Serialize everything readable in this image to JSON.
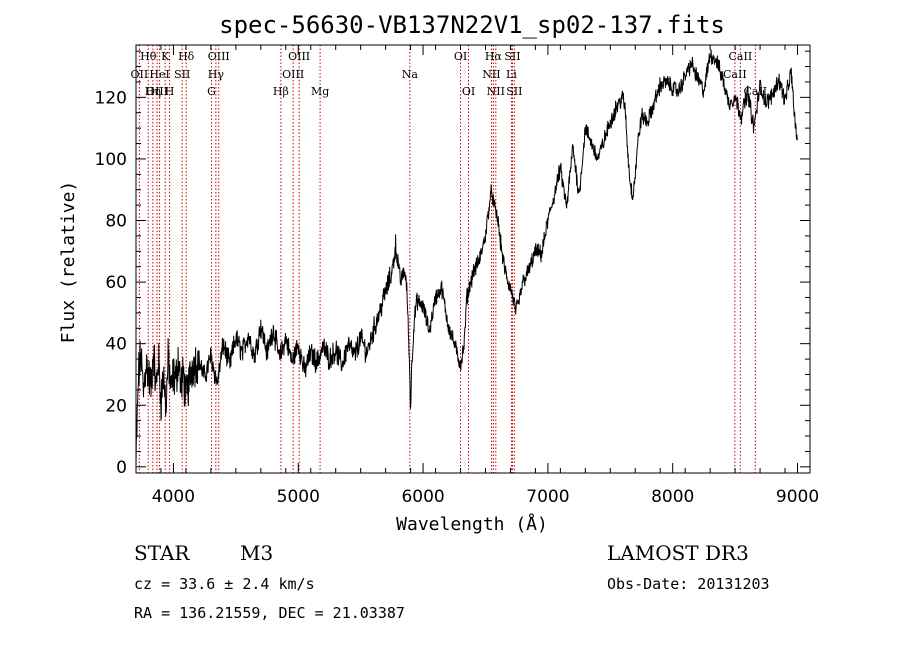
{
  "chart_data": {
    "type": "line",
    "title": "spec-56630-VB137N22V1_sp02-137.fits",
    "xlabel": "Wavelength (Å)",
    "ylabel": "Flux (relative)",
    "xlim": [
      3700,
      9100
    ],
    "ylim": [
      -2,
      137
    ],
    "x_ticks": [
      4000,
      5000,
      6000,
      7000,
      8000,
      9000
    ],
    "x_tick_labels": [
      "4000",
      "5000",
      "6000",
      "7000",
      "8000",
      "9000"
    ],
    "y_ticks": [
      0,
      20,
      40,
      60,
      80,
      100,
      120
    ],
    "y_tick_labels": [
      "0",
      "20",
      "40",
      "60",
      "80",
      "100",
      "120"
    ],
    "spectrum": {
      "x": [
        3700,
        3720,
        3740,
        3760,
        3780,
        3800,
        3820,
        3840,
        3860,
        3880,
        3900,
        3920,
        3940,
        3960,
        3980,
        4000,
        4020,
        4040,
        4060,
        4080,
        4100,
        4150,
        4200,
        4250,
        4300,
        4350,
        4400,
        4450,
        4500,
        4550,
        4600,
        4650,
        4700,
        4750,
        4800,
        4850,
        4900,
        4950,
        5000,
        5050,
        5100,
        5150,
        5200,
        5250,
        5300,
        5350,
        5400,
        5450,
        5500,
        5550,
        5600,
        5650,
        5700,
        5750,
        5780,
        5800,
        5820,
        5850,
        5870,
        5890,
        5900,
        5910,
        5930,
        5950,
        6000,
        6050,
        6100,
        6150,
        6200,
        6250,
        6300,
        6330,
        6350,
        6400,
        6450,
        6500,
        6530,
        6550,
        6563,
        6580,
        6600,
        6620,
        6650,
        6680,
        6700,
        6720,
        6740,
        6760,
        6800,
        6850,
        6900,
        6950,
        7000,
        7050,
        7100,
        7150,
        7200,
        7250,
        7300,
        7350,
        7400,
        7450,
        7500,
        7550,
        7600,
        7620,
        7640,
        7660,
        7680,
        7700,
        7720,
        7750,
        7800,
        7850,
        7900,
        7950,
        8000,
        8050,
        8100,
        8150,
        8200,
        8250,
        8300,
        8350,
        8400,
        8450,
        8500,
        8550,
        8600,
        8650,
        8700,
        8750,
        8800,
        8850,
        8900,
        8950,
        8980,
        9000
      ],
      "y": [
        0,
        30,
        36,
        24,
        34,
        30,
        26,
        38,
        25,
        35,
        22,
        30,
        20,
        36,
        24,
        30,
        28,
        36,
        26,
        30,
        22,
        33,
        35,
        29,
        36,
        27,
        40,
        33,
        42,
        37,
        43,
        36,
        46,
        37,
        45,
        35,
        42,
        34,
        40,
        31,
        37,
        34,
        39,
        35,
        38,
        33,
        40,
        36,
        42,
        37,
        44,
        50,
        57,
        63,
        72,
        66,
        60,
        64,
        58,
        35,
        18,
        34,
        48,
        54,
        52,
        44,
        55,
        58,
        46,
        40,
        33,
        40,
        55,
        63,
        67,
        75,
        85,
        90,
        86,
        83,
        80,
        73,
        65,
        60,
        58,
        55,
        51,
        52,
        60,
        64,
        70,
        69,
        80,
        88,
        97,
        84,
        104,
        88,
        110,
        105,
        100,
        106,
        112,
        117,
        120,
        116,
        102,
        92,
        88,
        95,
        105,
        114,
        112,
        118,
        124,
        125,
        123,
        122,
        127,
        131,
        126,
        122,
        134,
        132,
        126,
        118,
        120,
        114,
        122,
        110,
        124,
        118,
        121,
        126,
        119,
        128,
        112,
        105
      ]
    },
    "lines": [
      {
        "name": "Hθ",
        "wavelength": 3798,
        "row": 0
      },
      {
        "name": "OII",
        "wavelength": 3727,
        "row": 1
      },
      {
        "name": "OIII",
        "wavelength": 3869,
        "row": 2
      },
      {
        "name": "K",
        "wavelength": 3934,
        "row": 0
      },
      {
        "name": "HeI",
        "wavelength": 3889,
        "row": 1
      },
      {
        "name": "Hη",
        "wavelength": 3835,
        "row": 2
      },
      {
        "name": "H",
        "wavelength": 3969,
        "row": 2
      },
      {
        "name": "SII",
        "wavelength": 4070,
        "row": 1
      },
      {
        "name": "Hδ",
        "wavelength": 4102,
        "row": 0
      },
      {
        "name": "OIII",
        "wavelength": 4363,
        "row": 0
      },
      {
        "name": "Hγ",
        "wavelength": 4340,
        "row": 1
      },
      {
        "name": "G",
        "wavelength": 4305,
        "row": 2
      },
      {
        "name": "OIII",
        "wavelength": 5007,
        "row": 0
      },
      {
        "name": "OIII",
        "wavelength": 4959,
        "row": 1
      },
      {
        "name": "Hβ",
        "wavelength": 4861,
        "row": 2
      },
      {
        "name": "Mg",
        "wavelength": 5175,
        "row": 2
      },
      {
        "name": "Na",
        "wavelength": 5894,
        "row": 1
      },
      {
        "name": "OI",
        "wavelength": 6300,
        "row": 0
      },
      {
        "name": "OI",
        "wavelength": 6364,
        "row": 2
      },
      {
        "name": "Hα",
        "wavelength": 6563,
        "row": 0
      },
      {
        "name": "SII",
        "wavelength": 6716,
        "row": 0
      },
      {
        "name": "NII",
        "wavelength": 6548,
        "row": 1
      },
      {
        "name": "Li",
        "wavelength": 6708,
        "row": 1
      },
      {
        "name": "NII",
        "wavelength": 6583,
        "row": 2
      },
      {
        "name": "SII",
        "wavelength": 6731,
        "row": 2
      },
      {
        "name": "CaII",
        "wavelength": 8542,
        "row": 0
      },
      {
        "name": "CaII",
        "wavelength": 8498,
        "row": 1
      },
      {
        "name": "CaII",
        "wavelength": 8662,
        "row": 2
      }
    ]
  },
  "info": {
    "class_label": "STAR",
    "subclass": "M3",
    "survey": "LAMOST DR3",
    "cz": "cz = 33.6 ± 2.4 km/s",
    "obs_date": "Obs-Date: 20131203",
    "radec": "RA = 136.21559, DEC =  21.03387"
  },
  "colors": {
    "line_marker": "#cc0000",
    "spectrum": "#000000"
  }
}
